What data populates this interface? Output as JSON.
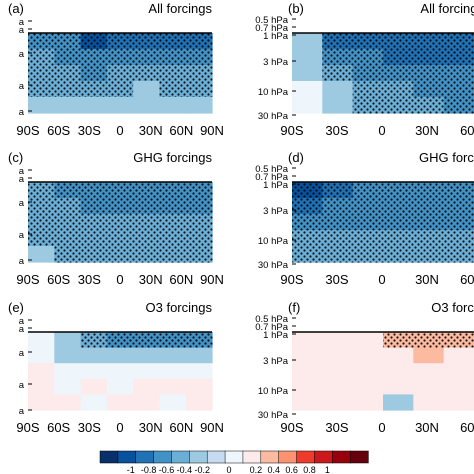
{
  "chart_data": {
    "type": "heatmap",
    "colorbar": {
      "ticks": [
        "-1",
        "-0.8",
        "-0.6",
        "-0.4",
        "-0.2",
        "0",
        "0.2",
        "0.4",
        "0.6",
        "0.8",
        "1"
      ],
      "colors": [
        "#08306b",
        "#08519c",
        "#2171b5",
        "#4292c6",
        "#6baed6",
        "#9ecae1",
        "#c6dbef",
        "#eef6fc",
        "#fdeaea",
        "#fcbba1",
        "#fc9272",
        "#ef3b2c",
        "#cb181d",
        "#99000d",
        "#67000d"
      ]
    },
    "xticks": [
      "90S",
      "60S",
      "30S",
      "0",
      "30N",
      "60N",
      "90N"
    ],
    "xticks_right": [
      "90S",
      "30S",
      "0",
      "30N",
      "60N"
    ],
    "panels": [
      {
        "label": "(a)",
        "title": "All forcings",
        "side": "left",
        "yticks": [
          "a",
          "a",
          "a",
          "a",
          "a"
        ],
        "x": [
          -90,
          -60,
          -30,
          0,
          30,
          60,
          90
        ],
        "rows": [
          [
            -0.45,
            -0.55,
            -0.85,
            -0.8,
            -0.75,
            -0.75,
            -0.75
          ],
          [
            -0.4,
            -0.45,
            -0.6,
            -0.55,
            -0.5,
            -0.5,
            -0.5
          ],
          [
            -0.3,
            -0.35,
            -0.45,
            -0.35,
            -0.35,
            -0.35,
            -0.3
          ],
          [
            -0.25,
            -0.25,
            -0.3,
            -0.3,
            -0.2,
            -0.25,
            -0.25
          ],
          [
            -0.15,
            -0.2,
            -0.15,
            -0.2,
            -0.2,
            -0.15,
            -0.15
          ]
        ]
      },
      {
        "label": "(b)",
        "title": "All forcings",
        "side": "right",
        "yticks": [
          "0.5 hPa",
          "0.7 hPa",
          "1 hPa",
          "3 hPa",
          "10 hPa",
          "30 hPa"
        ],
        "x": [
          -90,
          -60,
          -30,
          0,
          30,
          60
        ],
        "rows": [
          [
            -0.2,
            -0.65,
            -0.75,
            -0.8,
            -0.75,
            -0.8
          ],
          [
            -0.15,
            -0.45,
            -0.6,
            -0.7,
            -0.65,
            -0.7
          ],
          [
            -0.1,
            -0.3,
            -0.45,
            -0.55,
            -0.55,
            -0.6
          ],
          [
            -0.05,
            -0.2,
            -0.35,
            -0.4,
            -0.45,
            -0.5
          ],
          [
            -0.05,
            -0.1,
            -0.3,
            -0.35,
            -0.4,
            -0.45
          ]
        ]
      },
      {
        "label": "(c)",
        "title": "GHG forcings",
        "side": "left",
        "yticks": [
          "a",
          "a",
          "a",
          "a",
          "a"
        ],
        "x": [
          -90,
          -60,
          -30,
          0,
          30,
          60,
          90
        ],
        "rows": [
          [
            -0.4,
            -0.45,
            -0.55,
            -0.55,
            -0.5,
            -0.5,
            -0.5
          ],
          [
            -0.35,
            -0.4,
            -0.5,
            -0.5,
            -0.45,
            -0.45,
            -0.45
          ],
          [
            -0.3,
            -0.35,
            -0.4,
            -0.4,
            -0.4,
            -0.4,
            -0.4
          ],
          [
            -0.25,
            -0.3,
            -0.35,
            -0.35,
            -0.35,
            -0.35,
            -0.35
          ],
          [
            -0.2,
            -0.25,
            -0.3,
            -0.3,
            -0.3,
            -0.3,
            -0.3
          ]
        ]
      },
      {
        "label": "(d)",
        "title": "GHG forcin",
        "side": "right",
        "yticks": [
          "0.5 hPa",
          "0.7 hPa",
          "1 hPa",
          "3 hPa",
          "10 hPa",
          "30 hPa"
        ],
        "x": [
          -90,
          -60,
          -30,
          0,
          30,
          60
        ],
        "rows": [
          [
            -0.85,
            -0.65,
            -0.55,
            -0.6,
            -0.55,
            -0.55
          ],
          [
            -0.65,
            -0.55,
            -0.5,
            -0.55,
            -0.5,
            -0.5
          ],
          [
            -0.5,
            -0.45,
            -0.45,
            -0.45,
            -0.45,
            -0.45
          ],
          [
            -0.4,
            -0.4,
            -0.4,
            -0.4,
            -0.4,
            -0.4
          ],
          [
            -0.3,
            -0.35,
            -0.35,
            -0.35,
            -0.35,
            -0.35
          ]
        ]
      },
      {
        "label": "(e)",
        "title": "O3 forcings",
        "side": "left",
        "yticks": [
          "a",
          "a",
          "a",
          "a",
          "a"
        ],
        "x": [
          -90,
          -60,
          -30,
          0,
          30,
          60,
          90
        ],
        "rows": [
          [
            -0.05,
            -0.15,
            -0.35,
            -0.45,
            -0.45,
            -0.45,
            -0.45
          ],
          [
            -0.05,
            -0.1,
            -0.2,
            -0.15,
            -0.2,
            -0.2,
            -0.2
          ],
          [
            0.05,
            -0.05,
            -0.05,
            -0.05,
            -0.05,
            -0.05,
            -0.05
          ],
          [
            0.05,
            -0.05,
            0.05,
            -0.05,
            0.05,
            0.05,
            0.05
          ],
          [
            0.05,
            0.05,
            -0.05,
            0.05,
            0.05,
            -0.05,
            0.05
          ]
        ]
      },
      {
        "label": "(f)",
        "title": "O3 forcin",
        "side": "right",
        "yticks": [
          "0.5 hPa",
          "0.7 hPa",
          "1 hPa",
          "3 hPa",
          "10 hPa",
          "30 hPa"
        ],
        "x": [
          -90,
          -60,
          -30,
          0,
          30,
          60
        ],
        "rows": [
          [
            0.05,
            0.05,
            0.1,
            0.25,
            0.3,
            0.25
          ],
          [
            0.05,
            0.05,
            0.1,
            0.15,
            0.2,
            0.15
          ],
          [
            0.05,
            0.15,
            0.05,
            0.05,
            0.1,
            0.05
          ],
          [
            0.05,
            0.05,
            0.05,
            0.05,
            0.05,
            0.05
          ],
          [
            0.05,
            0.05,
            0.05,
            -0.1,
            0.05,
            0.05
          ]
        ]
      }
    ]
  }
}
